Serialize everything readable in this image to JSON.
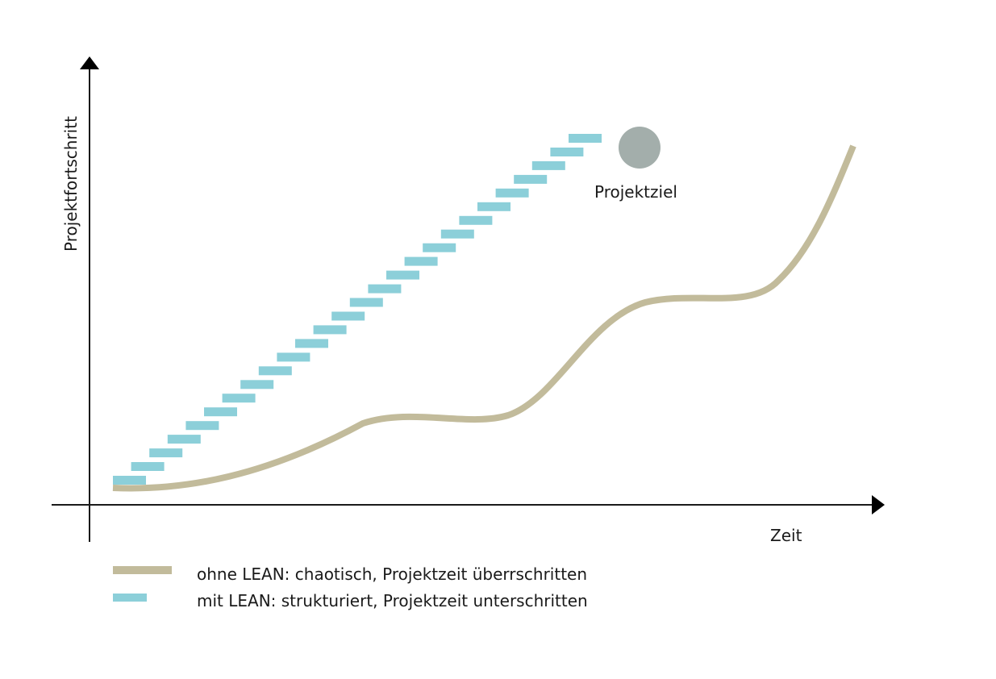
{
  "axes": {
    "y_label": "Projektfortschritt",
    "x_label": "Zeit"
  },
  "goal": {
    "label": "Projektziel",
    "color": "#a3aeab"
  },
  "series": [
    {
      "key": "without_lean",
      "name": "ohne LEAN: chaotisch, Projektzeit überrschritten",
      "style": "solid-thick",
      "color": "#c2bb9b"
    },
    {
      "key": "with_lean",
      "name": "mit LEAN: strukturiert, Projektzeit unterschritten",
      "style": "staircase-dashes",
      "color": "#8ccfd9"
    }
  ]
}
